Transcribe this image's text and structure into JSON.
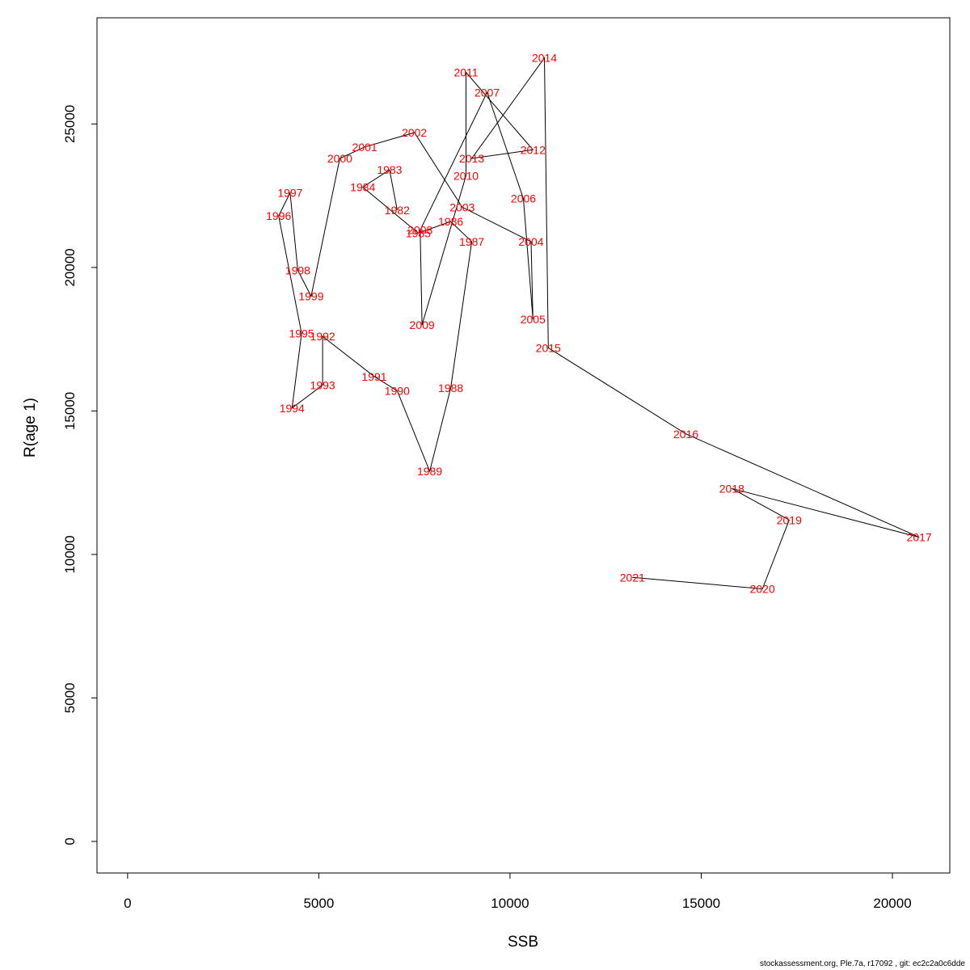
{
  "chart_data": {
    "type": "line",
    "title": "",
    "xlabel": "SSB",
    "ylabel": "R(age 1)",
    "xlim": [
      -800,
      21500
    ],
    "ylim": [
      -1100,
      28700
    ],
    "x_ticks": [
      0,
      5000,
      10000,
      15000,
      20000
    ],
    "y_ticks": [
      0,
      5000,
      10000,
      15000,
      20000,
      25000
    ],
    "grid": false,
    "legend": "none",
    "line_color": "#000000",
    "label_color": "#ff0000",
    "points": [
      {
        "label": "1982",
        "x": 7050,
        "y": 22000
      },
      {
        "label": "1983",
        "x": 6850,
        "y": 23400
      },
      {
        "label": "1984",
        "x": 6150,
        "y": 22800
      },
      {
        "label": "1985",
        "x": 7600,
        "y": 21200
      },
      {
        "label": "1986",
        "x": 8450,
        "y": 21600
      },
      {
        "label": "1987",
        "x": 9000,
        "y": 20900
      },
      {
        "label": "1988",
        "x": 8450,
        "y": 15800
      },
      {
        "label": "1989",
        "x": 7900,
        "y": 12900
      },
      {
        "label": "1990",
        "x": 7050,
        "y": 15700
      },
      {
        "label": "1991",
        "x": 6450,
        "y": 16200
      },
      {
        "label": "1992",
        "x": 5100,
        "y": 17600
      },
      {
        "label": "1993",
        "x": 5100,
        "y": 15900
      },
      {
        "label": "1994",
        "x": 4300,
        "y": 15100
      },
      {
        "label": "1995",
        "x": 4550,
        "y": 17700
      },
      {
        "label": "1996",
        "x": 3950,
        "y": 21800
      },
      {
        "label": "1997",
        "x": 4250,
        "y": 22600
      },
      {
        "label": "1998",
        "x": 4450,
        "y": 19900
      },
      {
        "label": "1999",
        "x": 4800,
        "y": 19000
      },
      {
        "label": "2000",
        "x": 5550,
        "y": 23800
      },
      {
        "label": "2001",
        "x": 6200,
        "y": 24200
      },
      {
        "label": "2002",
        "x": 7500,
        "y": 24700
      },
      {
        "label": "2003",
        "x": 8750,
        "y": 22100
      },
      {
        "label": "2004",
        "x": 10550,
        "y": 20900
      },
      {
        "label": "2005",
        "x": 10600,
        "y": 18200
      },
      {
        "label": "2006",
        "x": 10350,
        "y": 22400
      },
      {
        "label": "2007",
        "x": 9400,
        "y": 26100
      },
      {
        "label": "2008",
        "x": 7650,
        "y": 21300
      },
      {
        "label": "2009",
        "x": 7700,
        "y": 18000
      },
      {
        "label": "2010",
        "x": 8850,
        "y": 23200
      },
      {
        "label": "2011",
        "x": 8850,
        "y": 26800
      },
      {
        "label": "2012",
        "x": 10600,
        "y": 24100
      },
      {
        "label": "2013",
        "x": 9000,
        "y": 23800
      },
      {
        "label": "2014",
        "x": 10900,
        "y": 27300
      },
      {
        "label": "2015",
        "x": 11000,
        "y": 17200
      },
      {
        "label": "2016",
        "x": 14600,
        "y": 14200
      },
      {
        "label": "2017",
        "x": 20700,
        "y": 10600
      },
      {
        "label": "2018",
        "x": 15800,
        "y": 12300
      },
      {
        "label": "2019",
        "x": 17300,
        "y": 11200
      },
      {
        "label": "2020",
        "x": 16600,
        "y": 8800
      },
      {
        "label": "2021",
        "x": 13200,
        "y": 9200
      }
    ]
  },
  "footer": "stockassessment.org, Ple.7a, r17092 , git: ec2c2a0c6dde"
}
